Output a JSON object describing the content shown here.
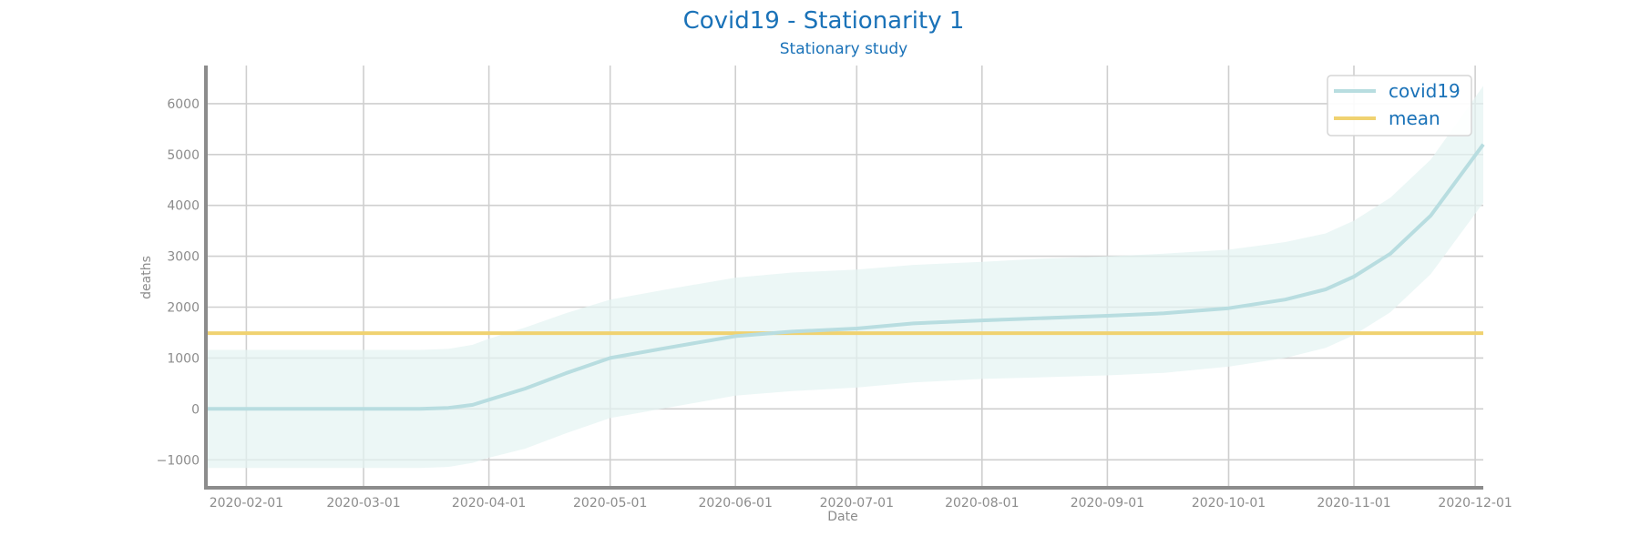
{
  "colors": {
    "title": "#1a72b8",
    "series": "#b8dde0",
    "band": "#e4f3f2",
    "mean": "#f0d270",
    "grid": "#cfcfcf",
    "axis": "#8c8c8c",
    "legend_text": "#1a72b8"
  },
  "chart_data": {
    "type": "line",
    "title": "Covid19 - Stationarity 1",
    "subtitle": "Stationary study",
    "xlabel": "Date",
    "ylabel": "deaths",
    "grid": true,
    "legend_position": "top-right",
    "xlim": [
      "2020-01-22",
      "2020-12-03"
    ],
    "ylim": [
      -1550,
      6750
    ],
    "x_ticks": [
      "2020-02-01",
      "2020-03-01",
      "2020-04-01",
      "2020-05-01",
      "2020-06-01",
      "2020-07-01",
      "2020-08-01",
      "2020-09-01",
      "2020-10-01",
      "2020-11-01",
      "2020-12-01"
    ],
    "y_ticks": [
      -1000,
      0,
      1000,
      2000,
      3000,
      4000,
      5000,
      6000
    ],
    "y_tick_labels": [
      "−1000",
      "0",
      "1000",
      "2000",
      "3000",
      "4000",
      "5000",
      "6000"
    ],
    "series": [
      {
        "name": "covid19",
        "x": [
          "2020-01-22",
          "2020-03-01",
          "2020-03-15",
          "2020-03-22",
          "2020-03-28",
          "2020-04-01",
          "2020-04-10",
          "2020-04-20",
          "2020-05-01",
          "2020-05-15",
          "2020-06-01",
          "2020-06-15",
          "2020-07-01",
          "2020-07-15",
          "2020-08-01",
          "2020-08-15",
          "2020-09-01",
          "2020-09-15",
          "2020-10-01",
          "2020-10-15",
          "2020-10-25",
          "2020-11-01",
          "2020-11-10",
          "2020-11-20",
          "2020-12-03"
        ],
        "y": [
          0,
          0,
          0,
          20,
          80,
          180,
          400,
          700,
          1000,
          1200,
          1430,
          1520,
          1580,
          1680,
          1740,
          1780,
          1830,
          1880,
          1980,
          2150,
          2350,
          2600,
          3050,
          3800,
          5200
        ]
      },
      {
        "name": "mean",
        "x": [
          "2020-01-22",
          "2020-12-03"
        ],
        "y": [
          1490,
          1490
        ]
      }
    ],
    "band": {
      "x": [
        "2020-01-22",
        "2020-03-15",
        "2020-03-22",
        "2020-03-28",
        "2020-04-01",
        "2020-04-10",
        "2020-04-20",
        "2020-05-01",
        "2020-05-15",
        "2020-06-01",
        "2020-06-15",
        "2020-07-01",
        "2020-07-15",
        "2020-08-01",
        "2020-08-15",
        "2020-09-01",
        "2020-09-15",
        "2020-10-01",
        "2020-10-15",
        "2020-10-25",
        "2020-11-01",
        "2020-11-10",
        "2020-11-20",
        "2020-12-03"
      ],
      "upper": [
        1160,
        1160,
        1180,
        1260,
        1380,
        1600,
        1880,
        2150,
        2350,
        2580,
        2680,
        2740,
        2830,
        2890,
        2950,
        3000,
        3050,
        3130,
        3280,
        3450,
        3700,
        4150,
        4900,
        6350
      ],
      "lower": [
        -1160,
        -1160,
        -1140,
        -1060,
        -960,
        -780,
        -480,
        -180,
        20,
        260,
        350,
        420,
        520,
        590,
        620,
        660,
        710,
        830,
        1000,
        1200,
        1450,
        1900,
        2650,
        4050
      ]
    }
  }
}
